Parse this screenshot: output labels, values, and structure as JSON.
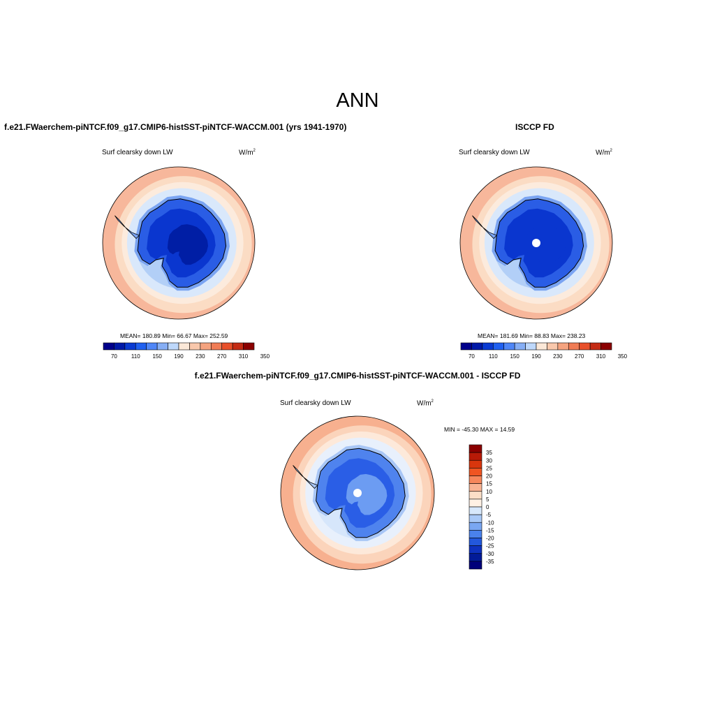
{
  "figure": {
    "title": "ANN",
    "case_title": "f.e21.FWaerchem-piNTCF.f09_g17.CMIP6-histSST-piNTCF-WACCM.001 (yrs 1941-1970)",
    "obs_title": "ISCCP FD",
    "diff_title": "f.e21.FWaerchem-piNTCF.f09_g17.CMIP6-histSST-piNTCF-WACCM.001 - ISCCP FD"
  },
  "panels": {
    "model": {
      "variable": "Surf clearsky down LW",
      "units_base": "W/m",
      "units_exp": "2",
      "stats": "MEAN= 180.89  Min=  66.67  Max= 252.59"
    },
    "obs": {
      "variable": "Surf clearsky down LW",
      "units_base": "W/m",
      "units_exp": "2",
      "stats": "MEAN= 181.69  Min=  88.83  Max= 238.23"
    },
    "diff": {
      "variable": "Surf clearsky down LW",
      "units_base": "W/m",
      "units_exp": "2",
      "stats": "MIN = -45.30 MAX =  14.59"
    }
  },
  "colorbars": {
    "abs_colors": [
      "#00008b",
      "#0019a8",
      "#0a3ad2",
      "#2060f0",
      "#4f86f7",
      "#86aef5",
      "#bed8fb",
      "#fbe8d8",
      "#f9c8ac",
      "#f5a37f",
      "#f07c55",
      "#e8502a",
      "#c42b14",
      "#8b0000"
    ],
    "abs_ticks": [
      "70",
      "110",
      "150",
      "190",
      "230",
      "270",
      "310",
      "350"
    ],
    "diff_colors": [
      "#8b0000",
      "#b81a07",
      "#d9360d",
      "#ef5522",
      "#f6875c",
      "#f9b393",
      "#fcdfc7",
      "#fff1e4",
      "#d7e8fb",
      "#a9c9f7",
      "#7aa7f2",
      "#4a82ec",
      "#2358dc",
      "#0e32bf",
      "#021b98",
      "#00007a"
    ],
    "diff_ticks": [
      "35",
      "30",
      "25",
      "20",
      "15",
      "10",
      "5",
      "0",
      "-5",
      "-10",
      "-15",
      "-20",
      "-25",
      "-30",
      "-35"
    ]
  },
  "map_colors": {
    "ocean_far": "#f7b79b",
    "ocean_mid": "#fbdcc4",
    "ocean_near": "#fcebdd",
    "seaice_outer": "#d9e8fb",
    "seaice_inner": "#b2cff7",
    "coast_band": "#7aa4f2",
    "ice_sheet": "#2a5de5",
    "ice_inner": "#0a36cf",
    "ice_core": "#001ea5",
    "coastline": "#000000"
  }
}
